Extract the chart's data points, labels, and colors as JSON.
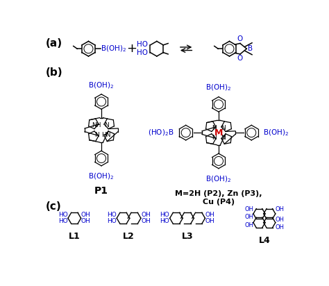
{
  "background_color": "#ffffff",
  "sections": {
    "a_label": "(a)",
    "b_label": "(b)",
    "c_label": "(c)"
  },
  "colors": {
    "black": "#000000",
    "blue": "#0000cd",
    "red": "#cc0000",
    "gray": "#888888"
  },
  "font_sizes": {
    "section_label": 11,
    "formula": 7.5,
    "compound_label": 9,
    "arrow": 13
  }
}
